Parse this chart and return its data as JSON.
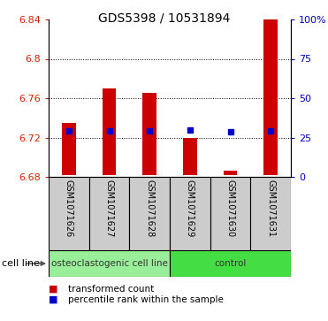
{
  "title": "GDS5398 / 10531894",
  "samples": [
    "GSM1071626",
    "GSM1071627",
    "GSM1071628",
    "GSM1071629",
    "GSM1071630",
    "GSM1071631"
  ],
  "bar_bottoms": [
    6.682,
    6.682,
    6.682,
    6.682,
    6.682,
    6.682
  ],
  "bar_tops": [
    6.735,
    6.77,
    6.765,
    6.72,
    6.686,
    6.84
  ],
  "blue_markers": [
    6.727,
    6.727,
    6.727,
    6.728,
    6.726,
    6.727
  ],
  "ylim_left": [
    6.68,
    6.84
  ],
  "yticks_left": [
    6.68,
    6.72,
    6.76,
    6.8,
    6.84
  ],
  "yticks_right": [
    0,
    25,
    50,
    75,
    100
  ],
  "ylim_right": [
    0,
    100
  ],
  "groups": [
    {
      "label": "osteoclastogenic cell line",
      "indices": [
        0,
        1,
        2
      ],
      "color": "#99ee99"
    },
    {
      "label": "control",
      "indices": [
        3,
        4,
        5
      ],
      "color": "#44dd44"
    }
  ],
  "cell_line_label": "cell line",
  "legend_items": [
    {
      "label": "transformed count",
      "color": "#cc0000"
    },
    {
      "label": "percentile rank within the sample",
      "color": "#0000cc"
    }
  ],
  "bar_color": "#cc0000",
  "marker_color": "#0000cc",
  "axis_color_left": "#cc2200",
  "axis_color_right": "#0000bb",
  "bg_color": "#ffffff",
  "plot_area_bg": "#ffffff",
  "sample_box_color": "#cccccc",
  "title_fontsize": 10,
  "tick_fontsize": 8,
  "sample_fontsize": 7,
  "group_fontsize": 7.5,
  "legend_fontsize": 7.5,
  "cell_line_fontsize": 8
}
